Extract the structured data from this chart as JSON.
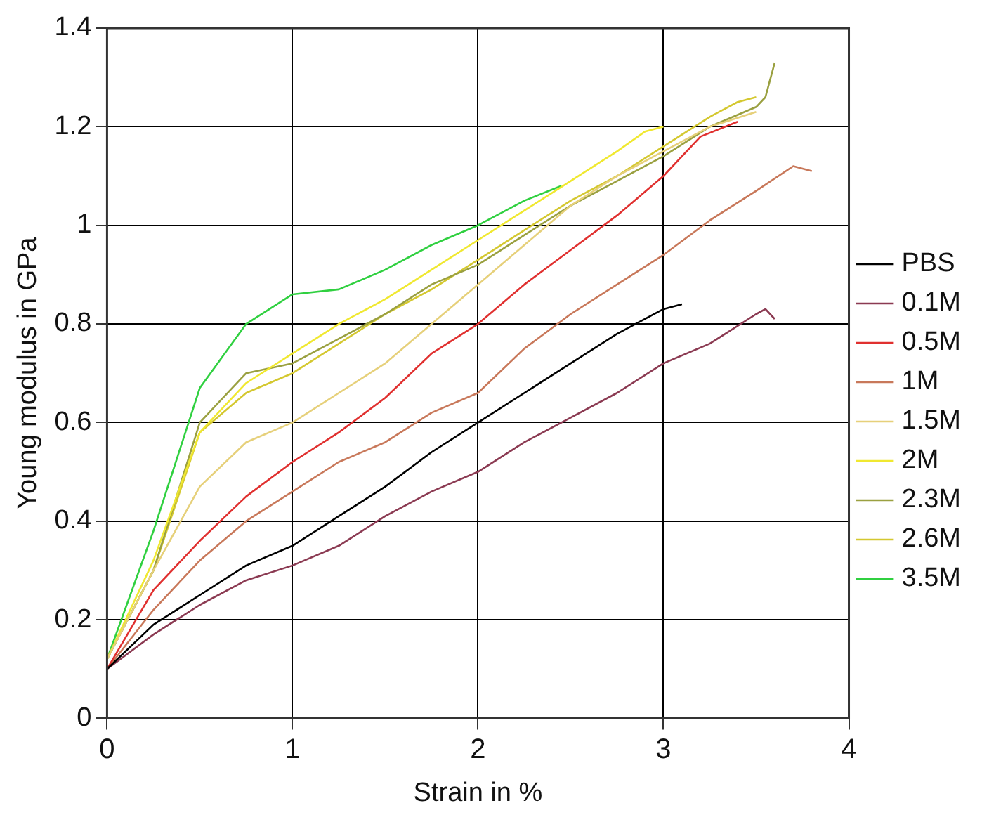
{
  "chart_data": {
    "type": "line",
    "xlabel": "Strain in %",
    "ylabel": "Young modulus in GPa",
    "xlim": [
      0,
      4
    ],
    "xticks": [
      0,
      1,
      2,
      3,
      4
    ],
    "ylim": [
      0,
      1.4
    ],
    "yticks": [
      0,
      0.2,
      0.4,
      0.6,
      0.8,
      1,
      1.2,
      1.4
    ],
    "grid": true,
    "legend": "right",
    "marker": "none",
    "line_style": "solid",
    "series": [
      {
        "name": "PBS",
        "color": "#000000",
        "x": [
          0,
          0.25,
          0.5,
          0.75,
          1,
          1.25,
          1.5,
          1.75,
          2,
          2.25,
          2.5,
          2.75,
          3,
          3.1
        ],
        "values": [
          0.1,
          0.19,
          0.25,
          0.31,
          0.35,
          0.41,
          0.47,
          0.54,
          0.6,
          0.66,
          0.72,
          0.78,
          0.83,
          0.84
        ]
      },
      {
        "name": "0.1M",
        "color": "#8b3a52",
        "x": [
          0,
          0.25,
          0.5,
          0.75,
          1,
          1.25,
          1.5,
          1.75,
          2,
          2.25,
          2.5,
          2.75,
          3,
          3.25,
          3.5,
          3.55,
          3.6
        ],
        "values": [
          0.1,
          0.17,
          0.23,
          0.28,
          0.31,
          0.35,
          0.41,
          0.46,
          0.5,
          0.56,
          0.61,
          0.66,
          0.72,
          0.76,
          0.82,
          0.83,
          0.81
        ]
      },
      {
        "name": "0.5M",
        "color": "#e0302f",
        "x": [
          0,
          0.25,
          0.5,
          0.75,
          1,
          1.25,
          1.5,
          1.75,
          2,
          2.25,
          2.5,
          2.75,
          3,
          3.2,
          3.4
        ],
        "values": [
          0.1,
          0.26,
          0.36,
          0.45,
          0.52,
          0.58,
          0.65,
          0.74,
          0.8,
          0.88,
          0.95,
          1.02,
          1.1,
          1.18,
          1.21
        ]
      },
      {
        "name": "1M",
        "color": "#c8785a",
        "x": [
          0,
          0.25,
          0.5,
          0.75,
          1,
          1.25,
          1.5,
          1.75,
          2,
          2.25,
          2.5,
          2.75,
          3,
          3.25,
          3.5,
          3.7,
          3.8
        ],
        "values": [
          0.1,
          0.22,
          0.32,
          0.4,
          0.46,
          0.52,
          0.56,
          0.62,
          0.66,
          0.75,
          0.82,
          0.88,
          0.94,
          1.01,
          1.07,
          1.12,
          1.11
        ]
      },
      {
        "name": "1.5M",
        "color": "#e6d07a",
        "x": [
          0,
          0.25,
          0.5,
          0.75,
          1,
          1.25,
          1.5,
          1.75,
          2,
          2.25,
          2.5,
          2.75,
          3,
          3.25,
          3.5
        ],
        "values": [
          0.12,
          0.3,
          0.47,
          0.56,
          0.6,
          0.66,
          0.72,
          0.8,
          0.88,
          0.96,
          1.04,
          1.1,
          1.15,
          1.2,
          1.23
        ]
      },
      {
        "name": "2M",
        "color": "#f0e830",
        "x": [
          0,
          0.25,
          0.5,
          0.75,
          1,
          1.25,
          1.5,
          1.75,
          2,
          2.25,
          2.5,
          2.75,
          2.9,
          3
        ],
        "values": [
          0.12,
          0.32,
          0.58,
          0.68,
          0.74,
          0.8,
          0.85,
          0.91,
          0.97,
          1.03,
          1.09,
          1.15,
          1.19,
          1.2
        ]
      },
      {
        "name": "2.3M",
        "color": "#9aa040",
        "x": [
          0,
          0.25,
          0.5,
          0.75,
          1,
          1.25,
          1.5,
          1.75,
          2,
          2.25,
          2.5,
          2.75,
          3,
          3.25,
          3.5,
          3.55,
          3.6
        ],
        "values": [
          0.12,
          0.3,
          0.6,
          0.7,
          0.72,
          0.77,
          0.82,
          0.88,
          0.92,
          0.98,
          1.04,
          1.09,
          1.14,
          1.2,
          1.24,
          1.26,
          1.33
        ]
      },
      {
        "name": "2.6M",
        "color": "#d4c830",
        "x": [
          0,
          0.25,
          0.5,
          0.75,
          1,
          1.25,
          1.5,
          1.75,
          2,
          2.25,
          2.5,
          2.75,
          3,
          3.25,
          3.4,
          3.5
        ],
        "values": [
          0.12,
          0.3,
          0.58,
          0.66,
          0.7,
          0.76,
          0.82,
          0.87,
          0.93,
          0.99,
          1.05,
          1.1,
          1.16,
          1.22,
          1.25,
          1.26
        ]
      },
      {
        "name": "3.5M",
        "color": "#30d040",
        "x": [
          0,
          0.25,
          0.5,
          0.75,
          1,
          1.25,
          1.5,
          1.75,
          2,
          2.25,
          2.45
        ],
        "values": [
          0.12,
          0.38,
          0.67,
          0.8,
          0.86,
          0.87,
          0.91,
          0.96,
          1.0,
          1.05,
          1.08
        ]
      }
    ]
  }
}
